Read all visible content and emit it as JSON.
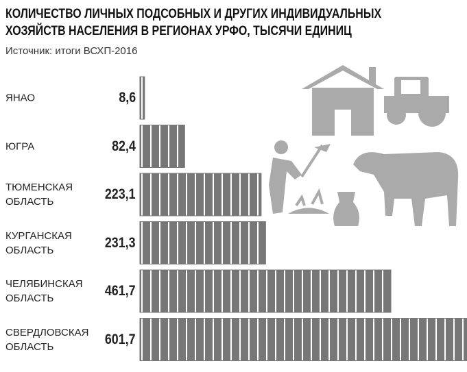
{
  "chart_data": {
    "type": "bar",
    "orientation": "horizontal",
    "title": "КОЛИЧЕСТВО ЛИЧНЫХ ПОДСОБНЫХ И ДРУГИХ ИНДИВИДУАЛЬНЫХ\nХОЗЯЙСТВ НАСЕЛЕНИЯ В РЕГИОНАХ УРФО, ТЫСЯЧИ ЕДИНИЦ",
    "subtitle": "Источник: итоги ВСХП-2016",
    "categories": [
      "ЯНАО",
      "ЮГРА",
      "ТЮМЕНСКАЯ ОБЛАСТЬ",
      "КУРГАНСКАЯ ОБЛАСТЬ",
      "ЧЕЛЯБИНСКАЯ ОБЛАСТЬ",
      "СВЕРДЛОВСКАЯ ОБЛАСТЬ"
    ],
    "values": [
      8.6,
      82.4,
      223.1,
      231.3,
      461.7,
      601.7
    ],
    "value_labels": [
      "8,6",
      "82,4",
      "223,1",
      "231,3",
      "461,7",
      "601,7"
    ],
    "color": "#777777"
  }
}
